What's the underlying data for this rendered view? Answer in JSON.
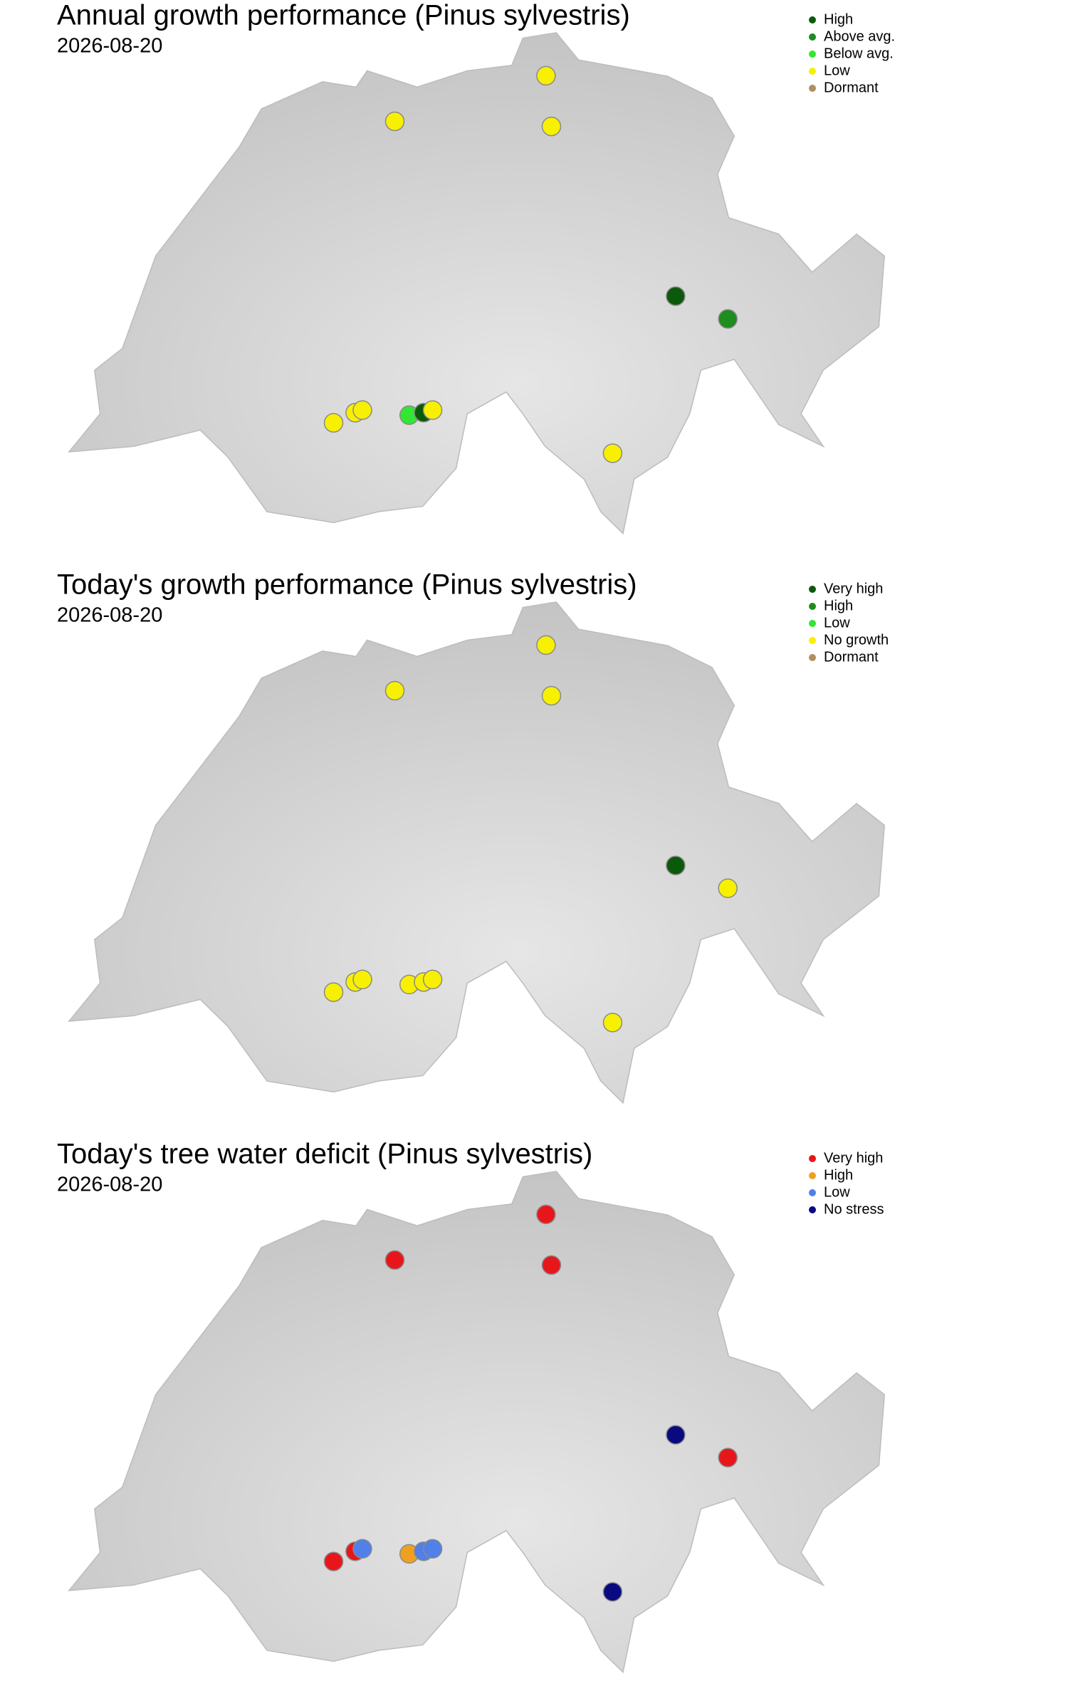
{
  "sites": [
    {
      "lon": 8.61,
      "lat": 47.64
    },
    {
      "lon": 7.77,
      "lat": 47.46
    },
    {
      "lon": 8.64,
      "lat": 47.44
    },
    {
      "lon": 9.33,
      "lat": 46.77
    },
    {
      "lon": 9.62,
      "lat": 46.68
    },
    {
      "lon": 7.43,
      "lat": 46.27
    },
    {
      "lon": 7.55,
      "lat": 46.31
    },
    {
      "lon": 7.59,
      "lat": 46.32
    },
    {
      "lon": 7.85,
      "lat": 46.3
    },
    {
      "lon": 7.93,
      "lat": 46.31
    },
    {
      "lon": 7.98,
      "lat": 46.32
    },
    {
      "lon": 8.98,
      "lat": 46.15
    }
  ],
  "panels": [
    {
      "title": "Annual growth performance (Pinus sylvestris)",
      "date": "2026-08-20",
      "legend": [
        {
          "label": "High",
          "color": "#0b5a0b"
        },
        {
          "label": "Above avg.",
          "color": "#1e8c1e"
        },
        {
          "label": "Below avg.",
          "color": "#33e633"
        },
        {
          "label": "Low",
          "color": "#f7f000"
        },
        {
          "label": "Dormant",
          "color": "#b09060"
        }
      ],
      "status": [
        "Low",
        "Low",
        "Low",
        "High",
        "Above avg.",
        "Low",
        "Low",
        "Low",
        "Below avg.",
        "High",
        "Low",
        "Low"
      ]
    },
    {
      "title": "Today's growth performance (Pinus sylvestris)",
      "date": "2026-08-20",
      "legend": [
        {
          "label": "Very high",
          "color": "#0b5a0b"
        },
        {
          "label": "High",
          "color": "#1e8c1e"
        },
        {
          "label": "Low",
          "color": "#33e633"
        },
        {
          "label": "No growth",
          "color": "#f7f000"
        },
        {
          "label": "Dormant",
          "color": "#b09060"
        }
      ],
      "status": [
        "No growth",
        "No growth",
        "No growth",
        "Very high",
        "No growth",
        "No growth",
        "No growth",
        "No growth",
        "No growth",
        "No growth",
        "No growth",
        "No growth"
      ]
    },
    {
      "title": "Today's tree water deficit (Pinus sylvestris)",
      "date": "2026-08-20",
      "legend": [
        {
          "label": "Very high",
          "color": "#e8161b"
        },
        {
          "label": "High",
          "color": "#f0a020"
        },
        {
          "label": "Low",
          "color": "#5080e8"
        },
        {
          "label": "No stress",
          "color": "#0a0a80"
        }
      ],
      "status": [
        "Very high",
        "Very high",
        "Very high",
        "No stress",
        "Very high",
        "Very high",
        "Very high",
        "Low",
        "High",
        "Low",
        "Low",
        "No stress"
      ]
    }
  ]
}
